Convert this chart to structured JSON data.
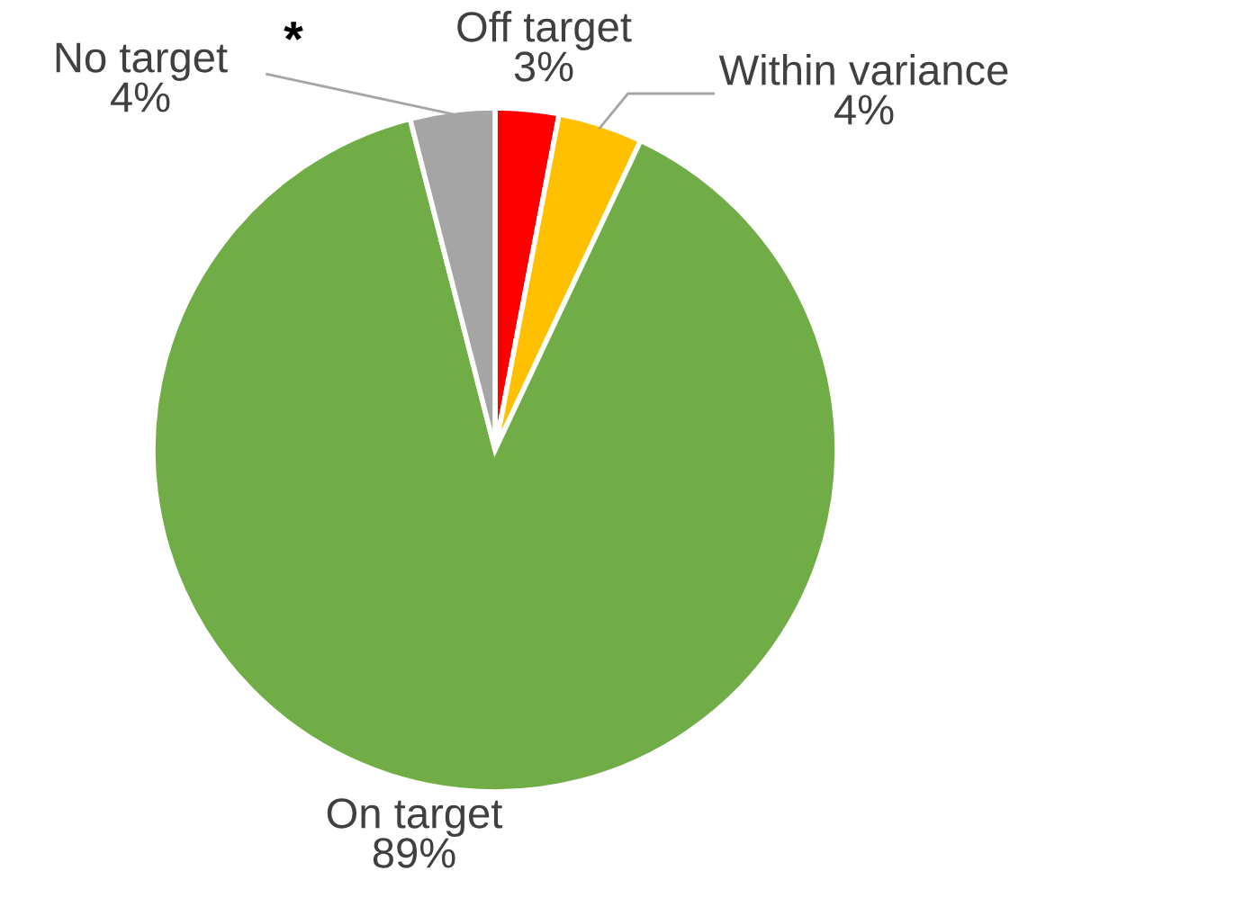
{
  "chart_data": {
    "type": "pie",
    "categories": [
      "Off target",
      "Within variance",
      "On target",
      "No target"
    ],
    "values": [
      3,
      4,
      89,
      4
    ],
    "colors": [
      "#ff0000",
      "#ffc000",
      "#70ad47",
      "#a5a5a5"
    ],
    "value_labels": [
      "3%",
      "4%",
      "89%",
      "4%"
    ],
    "annotations": [
      "*"
    ],
    "legend": false
  }
}
